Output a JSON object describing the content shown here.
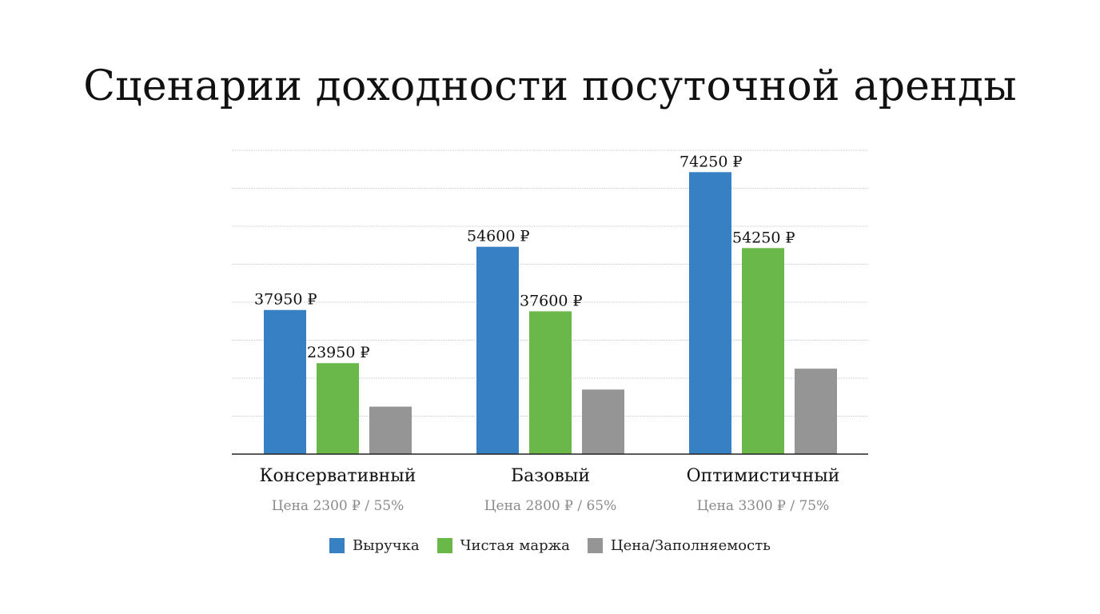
{
  "title": "Сценарии доходности посуточной аренды",
  "colors": {
    "revenue": "#3880c4",
    "margin": "#6bb84a",
    "price": "#959595",
    "grid": "#d4d4d4",
    "axis": "#222222",
    "sublabel": "#8a8a8a"
  },
  "chart_data": {
    "type": "bar",
    "title": "Сценарии доходности посуточной аренды",
    "categories": [
      "Консервативный",
      "Базовый",
      "Оптимистичный"
    ],
    "category_sublabels": [
      "Цена 2300 ₽ / 55%",
      "Цена 2800 ₽ / 65%",
      "Цена 3300 ₽ / 75%"
    ],
    "series": [
      {
        "name": "Выручка",
        "color": "#3880c4",
        "values": [
          37950,
          54600,
          74250
        ],
        "labels": [
          "37950 ₽",
          "54600 ₽",
          "74250 ₽"
        ]
      },
      {
        "name": "Чистая маржа",
        "color": "#6bb84a",
        "values": [
          23950,
          37600,
          54250
        ],
        "labels": [
          "23950 ₽",
          "37600 ₽",
          "54250 ₽"
        ]
      },
      {
        "name": "Цена/Заполняемость",
        "color": "#959595",
        "values": [
          12500,
          17000,
          22500
        ],
        "labels": [
          "",
          "",
          ""
        ]
      }
    ],
    "ylim": [
      0,
      80000
    ],
    "grid": true,
    "legend": "bottom-center",
    "xlabel": "",
    "ylabel": ""
  }
}
